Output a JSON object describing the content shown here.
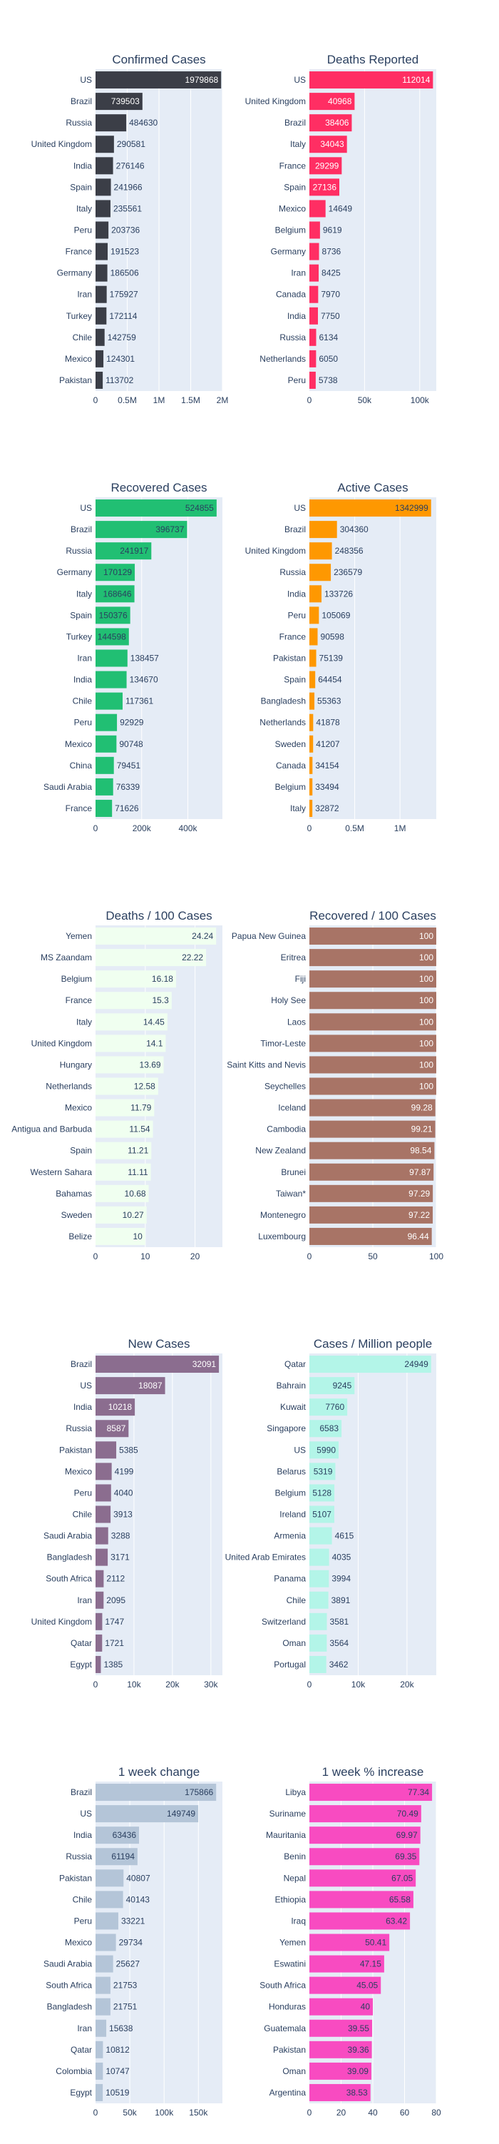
{
  "colors": {
    "plot_bg": "#e5ecf6",
    "grid": "#ffffff",
    "axis_text": "#2a3f5f",
    "title_text": "#2a3f5f"
  },
  "chart_data": [
    {
      "type": "bar",
      "orientation": "horizontal",
      "title": "Confirmed Cases",
      "color": "#3b3e47",
      "label_inside_color": "#ffffff",
      "xlim": [
        0,
        2000000
      ],
      "xticks": [
        0,
        500000,
        1000000,
        1500000,
        2000000
      ],
      "xtick_labels": [
        "0",
        "0.5M",
        "1M",
        "1.5M",
        "2M"
      ],
      "categories": [
        "US",
        "Brazil",
        "Russia",
        "United Kingdom",
        "India",
        "Spain",
        "Italy",
        "Peru",
        "France",
        "Germany",
        "Iran",
        "Turkey",
        "Chile",
        "Mexico",
        "Pakistan"
      ],
      "values": [
        1979868,
        739503,
        484630,
        290581,
        276146,
        241966,
        235561,
        203736,
        191523,
        186506,
        175927,
        172114,
        142759,
        124301,
        113702
      ],
      "labels": [
        "1979868",
        "739503",
        "484630",
        "290581",
        "276146",
        "241966",
        "235561",
        "203736",
        "191523",
        "186506",
        "175927",
        "172114",
        "142759",
        "124301",
        "113702"
      ]
    },
    {
      "type": "bar",
      "orientation": "horizontal",
      "title": "Deaths Reported",
      "color": "#ff2e63",
      "label_inside_color": "#ffffff",
      "xlim": [
        0,
        115000
      ],
      "xticks": [
        0,
        50000,
        100000
      ],
      "xtick_labels": [
        "0",
        "50k",
        "100k"
      ],
      "categories": [
        "US",
        "United Kingdom",
        "Brazil",
        "Italy",
        "France",
        "Spain",
        "Mexico",
        "Belgium",
        "Germany",
        "Iran",
        "Canada",
        "India",
        "Russia",
        "Netherlands",
        "Peru"
      ],
      "values": [
        112014,
        40968,
        38406,
        34043,
        29299,
        27136,
        14649,
        9619,
        8736,
        8425,
        7970,
        7750,
        6134,
        6050,
        5738
      ],
      "labels": [
        "112014",
        "40968",
        "38406",
        "34043",
        "29299",
        "27136",
        "14649",
        "9619",
        "8736",
        "8425",
        "7970",
        "7750",
        "6134",
        "6050",
        "5738"
      ]
    },
    {
      "type": "bar",
      "orientation": "horizontal",
      "title": "Recovered Cases",
      "color": "#21bf73",
      "label_inside_color": "#2a3f5f",
      "xlim": [
        0,
        550000
      ],
      "xticks": [
        0,
        200000,
        400000
      ],
      "xtick_labels": [
        "0",
        "200k",
        "400k"
      ],
      "categories": [
        "US",
        "Brazil",
        "Russia",
        "Germany",
        "Italy",
        "Spain",
        "Turkey",
        "Iran",
        "India",
        "Chile",
        "Peru",
        "Mexico",
        "China",
        "Saudi Arabia",
        "France"
      ],
      "values": [
        524855,
        396737,
        241917,
        170129,
        168646,
        150376,
        144598,
        138457,
        134670,
        117361,
        92929,
        90748,
        79451,
        76339,
        71626
      ],
      "labels": [
        "524855",
        "396737",
        "241917",
        "170129",
        "168646",
        "150376",
        "144598",
        "138457",
        "134670",
        "117361",
        "92929",
        "90748",
        "79451",
        "76339",
        "71626"
      ]
    },
    {
      "type": "bar",
      "orientation": "horizontal",
      "title": "Active Cases",
      "color": "#fe9801",
      "label_inside_color": "#2a3f5f",
      "xlim": [
        0,
        1400000
      ],
      "xticks": [
        0,
        500000,
        1000000
      ],
      "xtick_labels": [
        "0",
        "0.5M",
        "1M"
      ],
      "categories": [
        "US",
        "Brazil",
        "United Kingdom",
        "Russia",
        "India",
        "Peru",
        "France",
        "Pakistan",
        "Spain",
        "Bangladesh",
        "Netherlands",
        "Sweden",
        "Canada",
        "Belgium",
        "Italy"
      ],
      "values": [
        1342999,
        304360,
        248356,
        236579,
        133726,
        105069,
        90598,
        75139,
        64454,
        55363,
        41878,
        41207,
        34154,
        33494,
        32872
      ],
      "labels": [
        "1342999",
        "304360",
        "248356",
        "236579",
        "133726",
        "105069",
        "90598",
        "75139",
        "64454",
        "55363",
        "41878",
        "41207",
        "34154",
        "33494",
        "32872"
      ]
    },
    {
      "type": "bar",
      "orientation": "horizontal",
      "title": "Deaths / 100 Cases",
      "color": "#f0fff0",
      "label_inside_color": "#2a3f5f",
      "xlim": [
        0,
        25.5
      ],
      "xticks": [
        0,
        10,
        20
      ],
      "xtick_labels": [
        "0",
        "10",
        "20"
      ],
      "categories": [
        "Yemen",
        "MS Zaandam",
        "Belgium",
        "France",
        "Italy",
        "United Kingdom",
        "Hungary",
        "Netherlands",
        "Mexico",
        "Antigua and Barbuda",
        "Spain",
        "Western Sahara",
        "Bahamas",
        "Sweden",
        "Belize"
      ],
      "values": [
        24.24,
        22.22,
        16.18,
        15.3,
        14.45,
        14.1,
        13.69,
        12.58,
        11.79,
        11.54,
        11.21,
        11.11,
        10.68,
        10.27,
        10
      ],
      "labels": [
        "24.24",
        "22.22",
        "16.18",
        "15.3",
        "14.45",
        "14.1",
        "13.69",
        "12.58",
        "11.79",
        "11.54",
        "11.21",
        "11.11",
        "10.68",
        "10.27",
        "10"
      ]
    },
    {
      "type": "bar",
      "orientation": "horizontal",
      "title": "Recovered / 100 Cases",
      "color": "#a87466",
      "label_inside_color": "#ffffff",
      "xlim": [
        0,
        100
      ],
      "xticks": [
        0,
        50,
        100
      ],
      "xtick_labels": [
        "0",
        "50",
        "100"
      ],
      "categories": [
        "Papua New Guinea",
        "Eritrea",
        "Fiji",
        "Holy See",
        "Laos",
        "Timor-Leste",
        "Saint Kitts and Nevis",
        "Seychelles",
        "Iceland",
        "Cambodia",
        "New Zealand",
        "Brunei",
        "Taiwan*",
        "Montenegro",
        "Luxembourg"
      ],
      "values": [
        100,
        100,
        100,
        100,
        100,
        100,
        100,
        100,
        99.28,
        99.21,
        98.54,
        97.87,
        97.29,
        97.22,
        96.44
      ],
      "labels": [
        "100",
        "100",
        "100",
        "100",
        "100",
        "100",
        "100",
        "100",
        "99.28",
        "99.21",
        "98.54",
        "97.87",
        "97.29",
        "97.22",
        "96.44"
      ]
    },
    {
      "type": "bar",
      "orientation": "horizontal",
      "title": "New Cases",
      "color": "#8b6d8f",
      "label_inside_color": "#ffffff",
      "xlim": [
        0,
        33000
      ],
      "xticks": [
        0,
        10000,
        20000,
        30000
      ],
      "xtick_labels": [
        "0",
        "10k",
        "20k",
        "30k"
      ],
      "categories": [
        "Brazil",
        "US",
        "India",
        "Russia",
        "Pakistan",
        "Mexico",
        "Peru",
        "Chile",
        "Saudi Arabia",
        "Bangladesh",
        "South Africa",
        "Iran",
        "United Kingdom",
        "Qatar",
        "Egypt"
      ],
      "values": [
        32091,
        18087,
        10218,
        8587,
        5385,
        4199,
        4040,
        3913,
        3288,
        3171,
        2112,
        2095,
        1747,
        1721,
        1385
      ],
      "labels": [
        "32091",
        "18087",
        "10218",
        "8587",
        "5385",
        "4199",
        "4040",
        "3913",
        "3288",
        "3171",
        "2112",
        "2095",
        "1747",
        "1721",
        "1385"
      ]
    },
    {
      "type": "bar",
      "orientation": "horizontal",
      "title": "Cases / Million people",
      "color": "#b3f5e8",
      "label_inside_color": "#2a3f5f",
      "xlim": [
        0,
        26000
      ],
      "xticks": [
        0,
        10000,
        20000
      ],
      "xtick_labels": [
        "0",
        "10k",
        "20k"
      ],
      "categories": [
        "Qatar",
        "Bahrain",
        "Kuwait",
        "Singapore",
        "US",
        "Belarus",
        "Belgium",
        "Ireland",
        "Armenia",
        "United Arab Emirates",
        "Panama",
        "Chile",
        "Switzerland",
        "Oman",
        "Portugal"
      ],
      "values": [
        24949,
        9245,
        7760,
        6583,
        5990,
        5319,
        5128,
        5107,
        4615,
        4035,
        3994,
        3891,
        3581,
        3564,
        3462
      ],
      "labels": [
        "24949",
        "9245",
        "7760",
        "6583",
        "5990",
        "5319",
        "5128",
        "5107",
        "4615",
        "4035",
        "3994",
        "3891",
        "3581",
        "3564",
        "3462"
      ]
    },
    {
      "type": "bar",
      "orientation": "horizontal",
      "title": "1 week change",
      "color": "#b4c5d8",
      "label_inside_color": "#2a3f5f",
      "xlim": [
        0,
        185000
      ],
      "xticks": [
        0,
        50000,
        100000,
        150000
      ],
      "xtick_labels": [
        "0",
        "50k",
        "100k",
        "150k"
      ],
      "categories": [
        "Brazil",
        "US",
        "India",
        "Russia",
        "Pakistan",
        "Chile",
        "Peru",
        "Mexico",
        "Saudi Arabia",
        "South Africa",
        "Bangladesh",
        "Iran",
        "Qatar",
        "Colombia",
        "Egypt"
      ],
      "values": [
        175866,
        149749,
        63436,
        61194,
        40807,
        40143,
        33221,
        29734,
        25627,
        21753,
        21751,
        15638,
        10812,
        10747,
        10519
      ],
      "labels": [
        "175866",
        "149749",
        "63436",
        "61194",
        "40807",
        "40143",
        "33221",
        "29734",
        "25627",
        "21753",
        "21751",
        "15638",
        "10812",
        "10747",
        "10519"
      ]
    },
    {
      "type": "bar",
      "orientation": "horizontal",
      "title": "1 week % increase",
      "color": "#f84bc1",
      "label_inside_color": "#2a3f5f",
      "xlim": [
        0,
        80
      ],
      "xticks": [
        0,
        20,
        40,
        60,
        80
      ],
      "xtick_labels": [
        "0",
        "20",
        "40",
        "60",
        "80"
      ],
      "categories": [
        "Libya",
        "Suriname",
        "Mauritania",
        "Benin",
        "Nepal",
        "Ethiopia",
        "Iraq",
        "Yemen",
        "Eswatini",
        "South Africa",
        "Honduras",
        "Guatemala",
        "Pakistan",
        "Oman",
        "Argentina"
      ],
      "values": [
        77.34,
        70.49,
        69.97,
        69.35,
        67.05,
        65.58,
        63.42,
        50.41,
        47.15,
        45.05,
        40,
        39.55,
        39.36,
        39.09,
        38.53
      ],
      "labels": [
        "77.34",
        "70.49",
        "69.97",
        "69.35",
        "67.05",
        "65.58",
        "63.42",
        "50.41",
        "47.15",
        "45.05",
        "40",
        "39.55",
        "39.36",
        "39.09",
        "38.53"
      ]
    }
  ]
}
